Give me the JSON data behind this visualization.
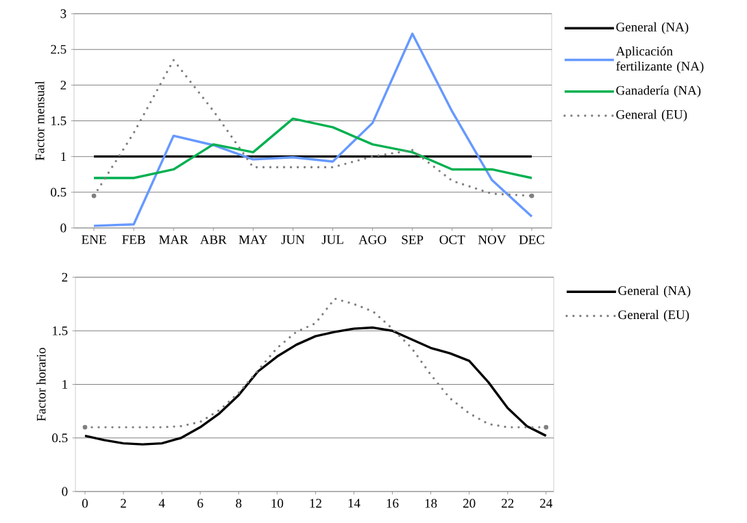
{
  "chart_data": [
    {
      "type": "line",
      "ylabel": "Factor  mensual",
      "categories": [
        "ENE",
        "FEB",
        "MAR",
        "ABR",
        "MAY",
        "JUN",
        "JUL",
        "AGO",
        "SEP",
        "OCT",
        "NOV",
        "DEC"
      ],
      "ylim": [
        0,
        3
      ],
      "yticks": [
        0,
        0.5,
        1,
        1.5,
        2,
        2.5,
        3
      ],
      "grid": "y",
      "legend": "right",
      "marker": "none",
      "series": [
        {
          "name": "General (NA)",
          "color": "#000000",
          "line_style": "solid",
          "values": [
            1,
            1,
            1,
            1,
            1,
            1,
            1,
            1,
            1,
            1,
            1,
            1
          ]
        },
        {
          "name": "Aplicación fertilizante (NA)",
          "color": "#6699ff",
          "line_style": "solid",
          "values": [
            0.03,
            0.05,
            1.29,
            1.16,
            0.96,
            0.99,
            0.93,
            1.47,
            2.72,
            1.63,
            0.67,
            0.16
          ]
        },
        {
          "name": "Ganadería (NA)",
          "color": "#00b050",
          "line_style": "solid",
          "values": [
            0.7,
            0.7,
            0.82,
            1.17,
            1.06,
            1.53,
            1.41,
            1.17,
            1.06,
            0.82,
            0.82,
            0.7
          ]
        },
        {
          "name": "General (EU)",
          "color": "#808080",
          "line_style": "dotted",
          "values": [
            0.45,
            1.33,
            2.35,
            1.64,
            0.85,
            0.85,
            0.85,
            1.0,
            1.09,
            0.66,
            0.48,
            0.45
          ]
        }
      ]
    },
    {
      "type": "line",
      "ylabel": "Factor  horario",
      "x": [
        0,
        1,
        2,
        3,
        4,
        5,
        6,
        7,
        8,
        9,
        10,
        11,
        12,
        13,
        14,
        15,
        16,
        17,
        18,
        19,
        20,
        21,
        22,
        23,
        24
      ],
      "xlim": [
        -0.5,
        24.4
      ],
      "xticks": [
        0,
        2,
        4,
        6,
        8,
        10,
        12,
        14,
        16,
        18,
        20,
        22,
        24
      ],
      "ylim": [
        0,
        2
      ],
      "yticks": [
        0,
        0.5,
        1,
        1.5,
        2
      ],
      "grid": "y",
      "legend": "right",
      "marker": "none",
      "series": [
        {
          "name": "General (NA)",
          "color": "#000000",
          "line_style": "solid",
          "values": [
            0.52,
            0.48,
            0.45,
            0.44,
            0.45,
            0.5,
            0.6,
            0.73,
            0.9,
            1.12,
            1.26,
            1.37,
            1.45,
            1.49,
            1.52,
            1.53,
            1.5,
            1.42,
            1.34,
            1.29,
            1.22,
            1.02,
            0.78,
            0.61,
            0.52
          ]
        },
        {
          "name": "General (EU)",
          "color": "#808080",
          "line_style": "dotted",
          "values": [
            0.6,
            0.6,
            0.6,
            0.6,
            0.6,
            0.61,
            0.65,
            0.76,
            0.92,
            1.13,
            1.34,
            1.49,
            1.57,
            1.8,
            1.75,
            1.68,
            1.52,
            1.34,
            1.09,
            0.87,
            0.73,
            0.63,
            0.6,
            0.6,
            0.6
          ]
        }
      ]
    }
  ]
}
